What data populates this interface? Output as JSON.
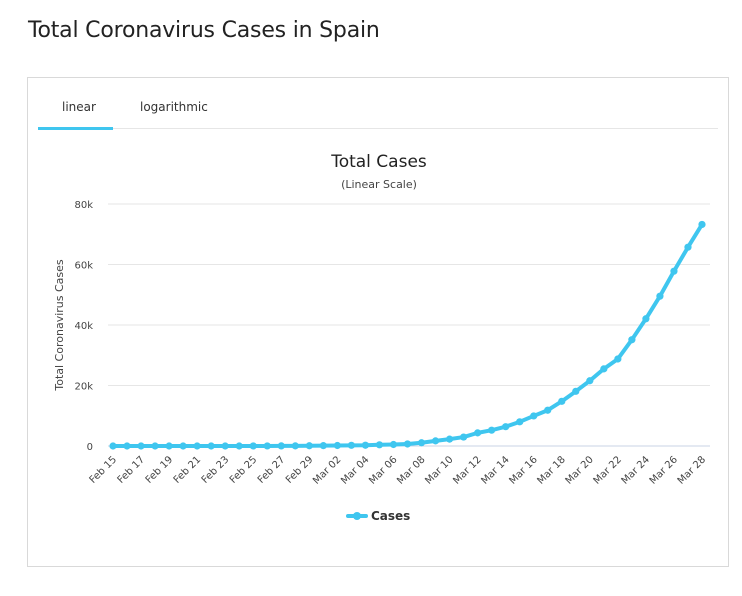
{
  "page": {
    "title": "Total Coronavirus Cases in Spain"
  },
  "tabs": [
    {
      "label": "linear",
      "active": true
    },
    {
      "label": "logarithmic",
      "active": false
    }
  ],
  "colors": {
    "series": "#3fc6ef",
    "grid": "#e6e6e6",
    "accent": "#3fc6ef"
  },
  "chart_data": {
    "type": "line",
    "title": "Total Cases",
    "subtitle": "(Linear Scale)",
    "xlabel": "",
    "ylabel": "Total Coronavirus Cases",
    "ylim": [
      0,
      80000
    ],
    "yticks": [
      0,
      20000,
      40000,
      60000,
      80000
    ],
    "ytick_labels": [
      "0",
      "20k",
      "40k",
      "60k",
      "80k"
    ],
    "x_tick_labels": [
      "Feb 15",
      "Feb 17",
      "Feb 19",
      "Feb 21",
      "Feb 23",
      "Feb 25",
      "Feb 27",
      "Feb 29",
      "Mar 02",
      "Mar 04",
      "Mar 06",
      "Mar 08",
      "Mar 10",
      "Mar 12",
      "Mar 14",
      "Mar 16",
      "Mar 18",
      "Mar 20",
      "Mar 22",
      "Mar 24",
      "Mar 26",
      "Mar 28"
    ],
    "legend": "bottom-center",
    "series": [
      {
        "name": "Cases",
        "x": [
          "Feb 15",
          "Feb 16",
          "Feb 17",
          "Feb 18",
          "Feb 19",
          "Feb 20",
          "Feb 21",
          "Feb 22",
          "Feb 23",
          "Feb 24",
          "Feb 25",
          "Feb 26",
          "Feb 27",
          "Feb 28",
          "Feb 29",
          "Mar 01",
          "Mar 02",
          "Mar 03",
          "Mar 04",
          "Mar 05",
          "Mar 06",
          "Mar 07",
          "Mar 08",
          "Mar 09",
          "Mar 10",
          "Mar 11",
          "Mar 12",
          "Mar 13",
          "Mar 14",
          "Mar 15",
          "Mar 16",
          "Mar 17",
          "Mar 18",
          "Mar 19",
          "Mar 20",
          "Mar 21",
          "Mar 22",
          "Mar 23",
          "Mar 24",
          "Mar 25",
          "Mar 26",
          "Mar 27",
          "Mar 28"
        ],
        "values": [
          2,
          2,
          2,
          2,
          2,
          2,
          2,
          2,
          2,
          3,
          13,
          15,
          32,
          45,
          84,
          120,
          165,
          222,
          259,
          400,
          500,
          673,
          1073,
          1695,
          2277,
          2950,
          4334,
          5232,
          6391,
          7988,
          9942,
          11826,
          14769,
          18077,
          21571,
          25496,
          28768,
          35136,
          42058,
          49515,
          57786,
          65719,
          73235
        ]
      }
    ]
  }
}
